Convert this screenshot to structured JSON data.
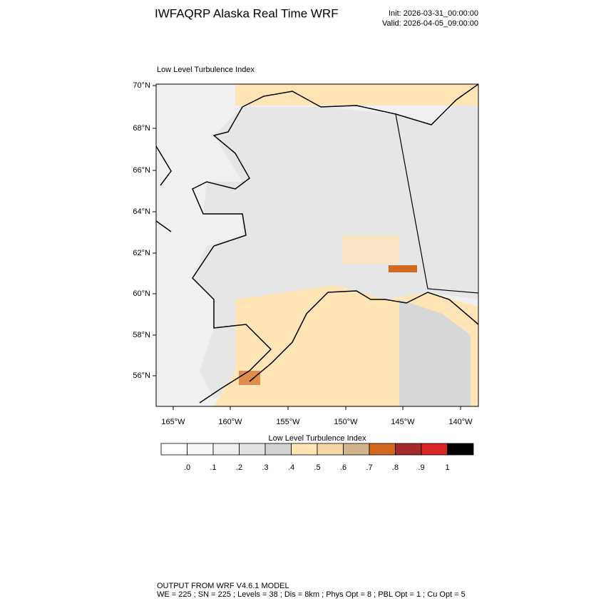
{
  "header": {
    "title": "IWFAQRP Alaska Real Time WRF",
    "init": "Init: 2026-03-31_00:00:00",
    "valid": "Valid: 2026-04-05_09:00:00"
  },
  "map": {
    "title": "Low Level Turbulence Index",
    "lat_labels": [
      "70°N",
      "68°N",
      "66°N",
      "64°N",
      "62°N",
      "60°N",
      "58°N",
      "56°N"
    ],
    "lon_labels": [
      "165°W",
      "160°W",
      "155°W",
      "150°W",
      "145°W",
      "140°W"
    ]
  },
  "colorbar": {
    "title": "Low Level Turbulence Index",
    "colors": [
      "#ffffff",
      "#f7f7f7",
      "#efefef",
      "#e1e1e1",
      "#d1d1d1",
      "#ffe4b5",
      "#f5d7a5",
      "#d2b48c",
      "#d2691e",
      "#a52a2a",
      "#dc2626",
      "#000000"
    ],
    "labels": [
      ".0",
      ".1",
      ".2",
      ".3",
      ".4",
      ".5",
      ".6",
      ".7",
      ".8",
      ".9",
      "1"
    ]
  },
  "footer": {
    "line1": "OUTPUT FROM WRF V4.6.1 MODEL",
    "line2": "WE = 225 ; SN = 225 ; Levels = 38 ; Dis = 8km ; Phys Opt = 8 ; PBL Opt = 1 ; Cu Opt = 5"
  }
}
